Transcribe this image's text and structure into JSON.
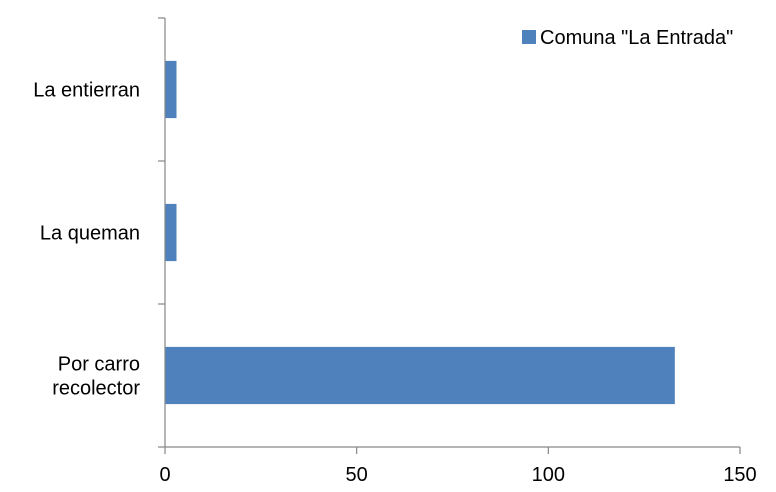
{
  "chart_data": {
    "type": "bar",
    "orientation": "horizontal",
    "categories": [
      [
        "La entierran"
      ],
      [
        "La queman"
      ],
      [
        "Por carro",
        "recolector"
      ]
    ],
    "series": [
      {
        "name": "Comuna \"La Entrada\"",
        "values": [
          3,
          3,
          133
        ],
        "color": "#4f81bd"
      }
    ],
    "xlim": [
      0,
      150
    ],
    "xticks": [
      "0",
      "50",
      "100",
      "150"
    ],
    "grid": false,
    "legend": "top-right"
  }
}
